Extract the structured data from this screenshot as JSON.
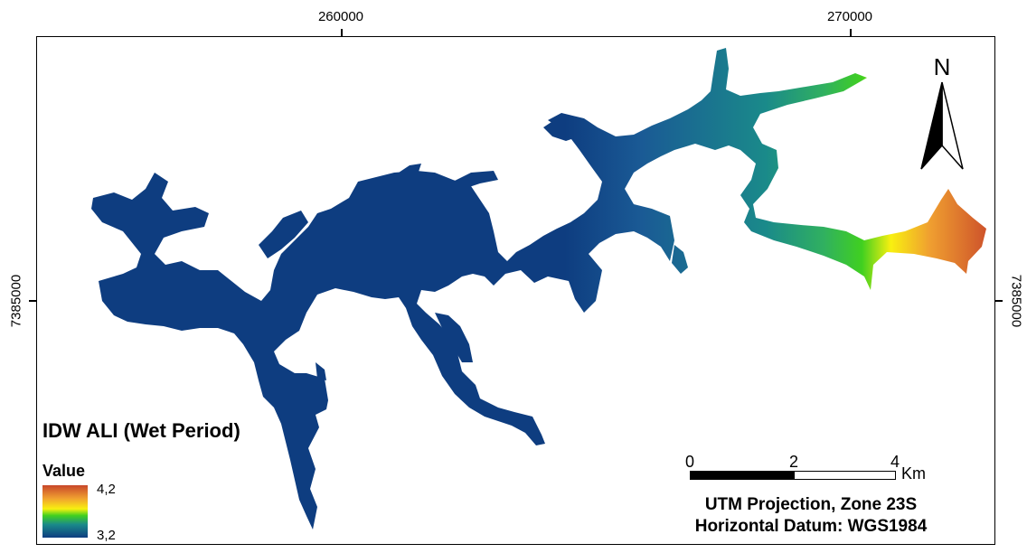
{
  "axes": {
    "x_ticks": [
      "260000",
      "270000"
    ],
    "y_tick": "7385000"
  },
  "legend": {
    "title": "IDW ALI (Wet Period)",
    "subtitle": "Value",
    "max_label": "4,2",
    "min_label": "3,2",
    "colors": [
      "#c8462a",
      "#f0a030",
      "#f8f010",
      "#40d020",
      "#1a8a8a",
      "#0e3d80"
    ]
  },
  "scale_bar": {
    "labels": [
      "0",
      "2",
      "4"
    ],
    "unit": "Km"
  },
  "projection": {
    "line1": "UTM Projection, Zone 23S",
    "line2": "Horizontal Datum: WGS1984"
  },
  "north_arrow": {
    "label": "N",
    "icon": "north-arrow-icon"
  },
  "water_color": "#0e3d80"
}
